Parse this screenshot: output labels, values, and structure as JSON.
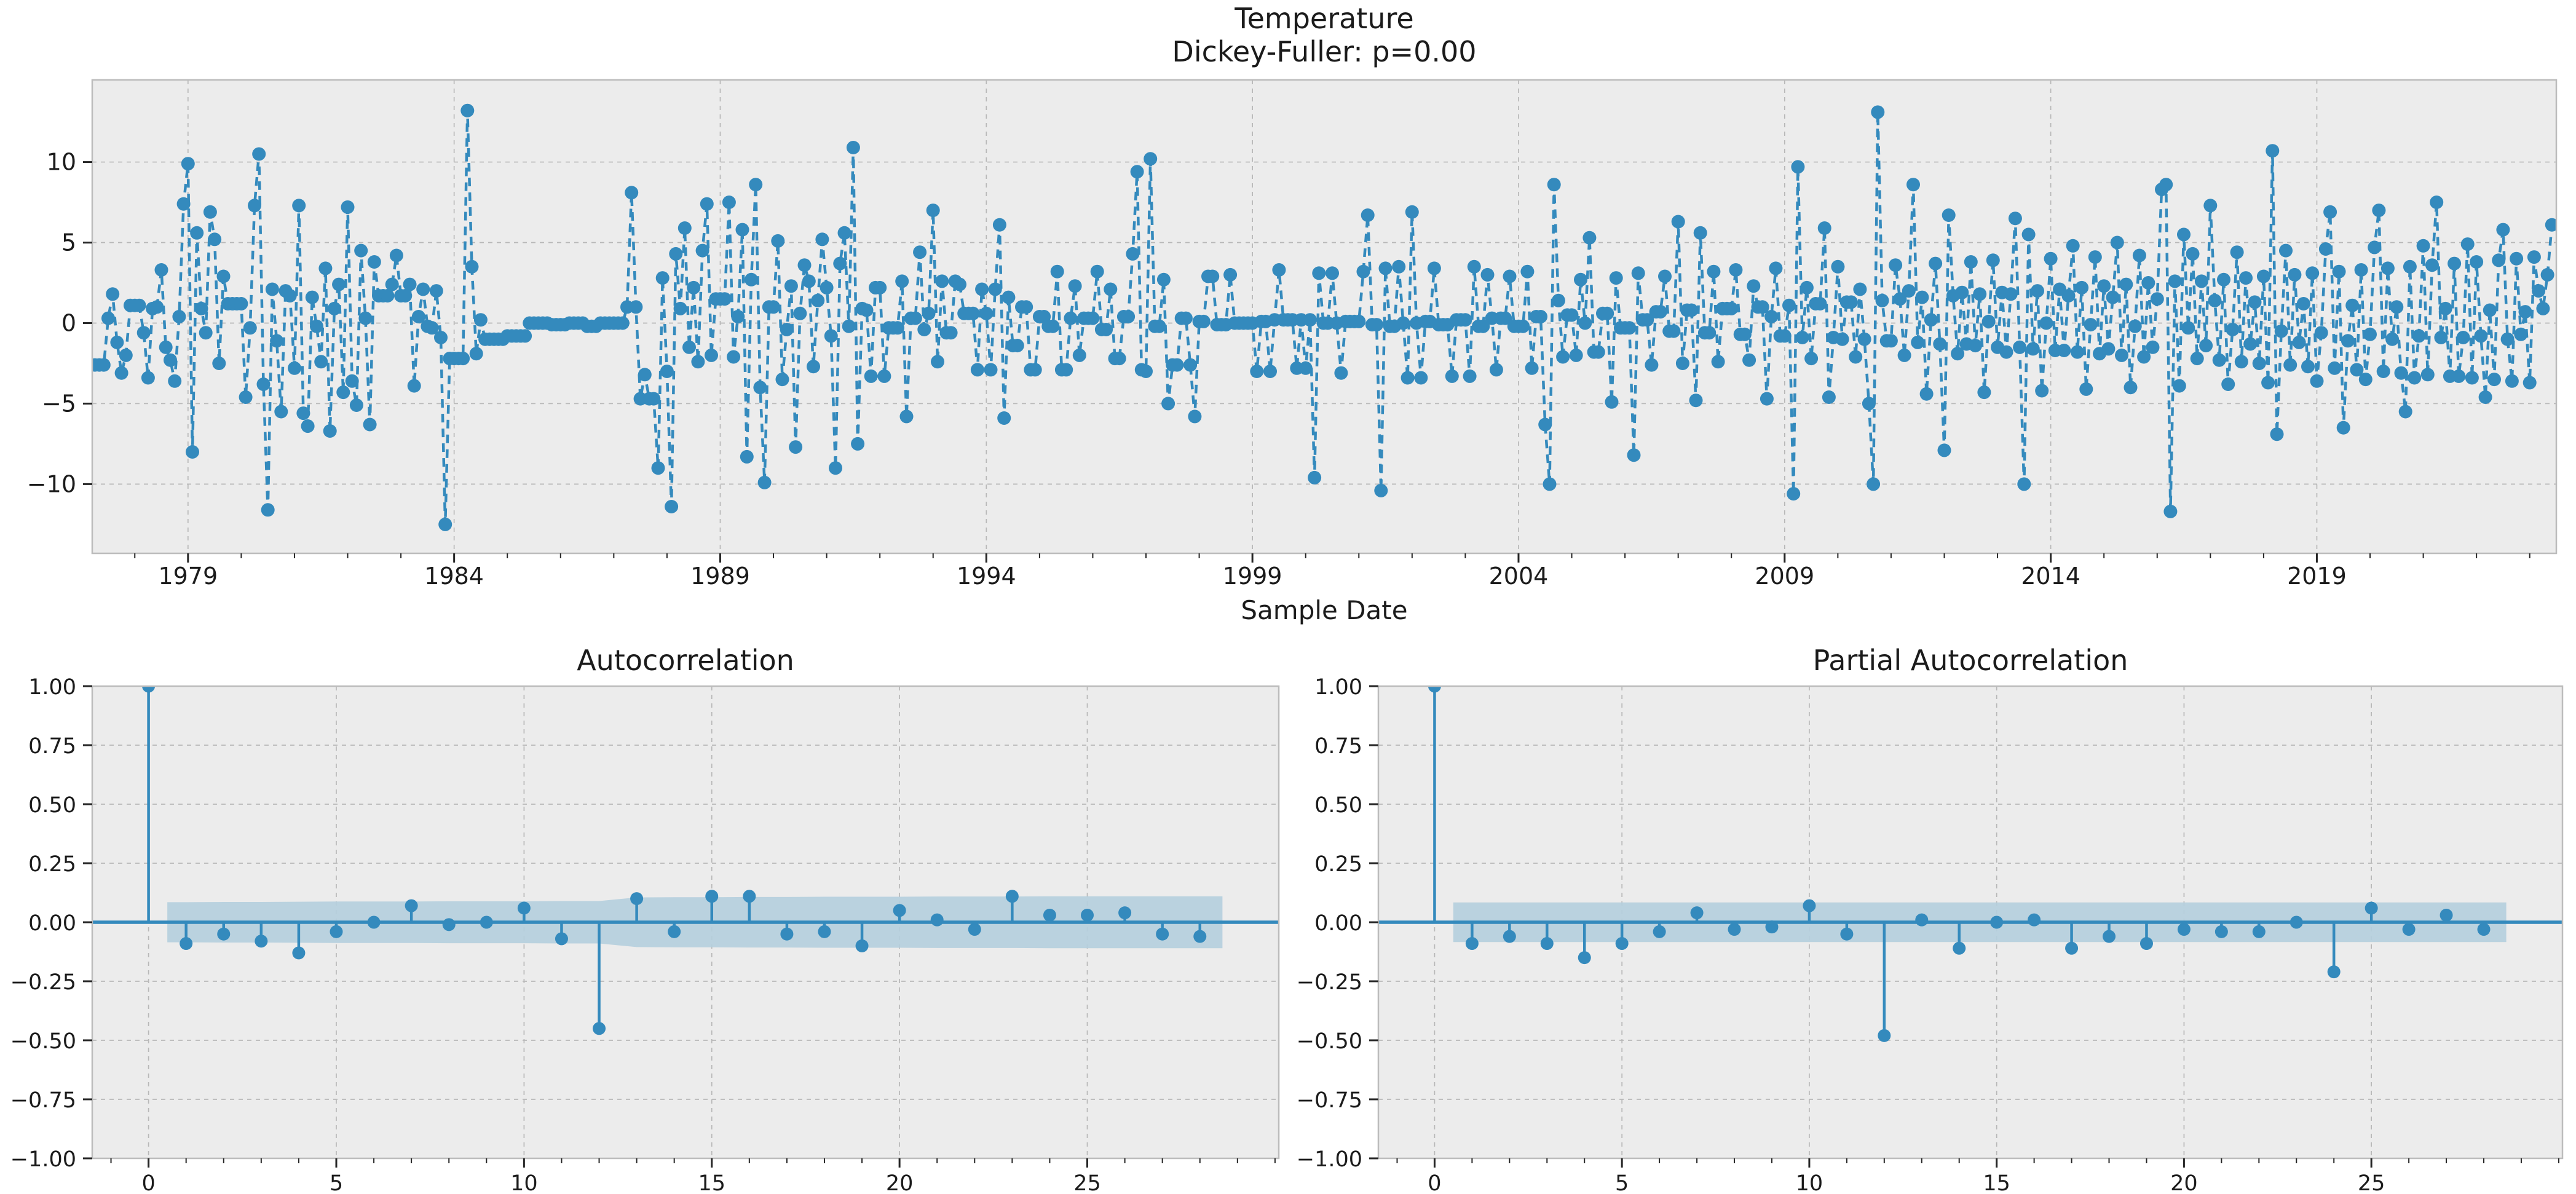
{
  "style": {
    "figure_bg": "#ffffff",
    "panel_bg": "#ececec",
    "grid_color": "#b8b8b8",
    "spine_color": "#bcbcbc",
    "tick_color": "#262626",
    "accent_blue": "#348ABD",
    "band_blue": "#b5cfde",
    "text_color": "#1b1b1b"
  },
  "chart_data": [
    {
      "type": "line",
      "title": "Temperature",
      "subtitle": "Dickey-Fuller: p=0.00",
      "xlabel": "Sample Date",
      "legend": null,
      "grid": true,
      "linestyle": "dashed",
      "marker": "o",
      "x_start": 1977.25,
      "x_step": 0.0833333,
      "xlim": [
        1977.2,
        2023.5
      ],
      "ylim": [
        -14.3,
        15.1
      ],
      "xticks": [
        1979,
        1984,
        1989,
        1994,
        1999,
        2004,
        2009,
        2014,
        2019
      ],
      "xtick_labels": [
        "1979",
        "1984",
        "1989",
        "1994",
        "1999",
        "2004",
        "2009",
        "2014",
        "2019"
      ],
      "xminor_step": 1,
      "yticks": [
        10,
        5,
        0,
        -5,
        -10
      ],
      "ytick_labels": [
        "10",
        "5",
        "0",
        "−5",
        "−10"
      ],
      "values": [
        -2.6,
        -2.6,
        -2.6,
        0.3,
        1.8,
        -1.2,
        -3.1,
        -2.0,
        1.1,
        1.1,
        1.1,
        -0.6,
        -3.4,
        0.9,
        1.0,
        3.3,
        -1.5,
        -2.3,
        -3.6,
        0.4,
        7.4,
        9.9,
        -8.0,
        5.6,
        0.9,
        -0.6,
        6.9,
        5.2,
        -2.5,
        2.9,
        1.2,
        1.2,
        1.2,
        1.2,
        -4.6,
        -0.3,
        7.3,
        10.5,
        -3.8,
        -11.6,
        2.1,
        -1.1,
        -5.5,
        2.0,
        1.7,
        -2.8,
        7.3,
        -5.6,
        -6.4,
        1.6,
        -0.2,
        -2.4,
        3.4,
        -6.7,
        0.9,
        2.4,
        -4.3,
        7.2,
        -3.6,
        -5.1,
        4.5,
        0.3,
        -6.3,
        3.8,
        1.7,
        1.7,
        1.7,
        2.4,
        4.2,
        1.7,
        1.7,
        2.4,
        -3.9,
        0.4,
        2.1,
        -0.2,
        -0.3,
        2.0,
        -0.9,
        -12.5,
        -2.2,
        -2.2,
        -2.2,
        -2.2,
        13.2,
        3.5,
        -1.9,
        0.2,
        -1.0,
        -1.0,
        -1.0,
        -1.0,
        -1.0,
        -0.8,
        -0.8,
        -0.8,
        -0.8,
        -0.8,
        0.0,
        0.0,
        0.0,
        0.0,
        0.0,
        -0.1,
        -0.1,
        -0.1,
        -0.1,
        0.0,
        0.0,
        0.0,
        0.0,
        -0.2,
        -0.2,
        -0.2,
        0.0,
        0.0,
        0.0,
        0.0,
        0.0,
        0.0,
        1.0,
        8.1,
        1.0,
        -4.7,
        -3.2,
        -4.7,
        -4.7,
        -9.0,
        2.8,
        -3.0,
        -11.4,
        4.3,
        0.9,
        5.9,
        -1.5,
        2.2,
        -2.4,
        4.5,
        7.4,
        -2.0,
        1.5,
        1.5,
        1.5,
        7.5,
        -2.1,
        0.4,
        5.8,
        -8.3,
        2.7,
        8.6,
        -4.0,
        -9.9,
        1.0,
        1.0,
        5.1,
        -3.5,
        -0.4,
        2.3,
        -7.7,
        0.6,
        3.6,
        2.6,
        -2.7,
        1.4,
        5.2,
        2.2,
        -0.8,
        -9.0,
        3.7,
        5.6,
        -0.2,
        10.9,
        -7.5,
        0.9,
        0.8,
        -3.3,
        2.2,
        2.2,
        -3.3,
        -0.3,
        -0.3,
        -0.3,
        2.6,
        -5.8,
        0.3,
        0.3,
        4.4,
        -0.4,
        0.6,
        7.0,
        -2.4,
        2.6,
        -0.6,
        -0.6,
        2.6,
        2.4,
        0.6,
        0.6,
        0.6,
        -2.9,
        2.1,
        0.6,
        -2.9,
        2.1,
        6.1,
        -5.9,
        1.6,
        -1.4,
        -1.4,
        1.0,
        1.0,
        -2.9,
        -2.9,
        0.4,
        0.4,
        -0.2,
        -0.2,
        3.2,
        -2.9,
        -2.9,
        0.3,
        2.3,
        -2.0,
        0.3,
        0.3,
        0.3,
        3.2,
        -0.4,
        -0.4,
        2.1,
        -2.2,
        -2.2,
        0.4,
        0.4,
        4.3,
        9.4,
        -2.9,
        -3.0,
        10.2,
        -0.2,
        -0.2,
        2.7,
        -5.0,
        -2.6,
        -2.6,
        0.3,
        0.3,
        -2.6,
        -5.8,
        0.1,
        0.1,
        2.9,
        2.9,
        -0.1,
        -0.1,
        -0.1,
        3.0,
        0.0,
        0.0,
        0.0,
        0.0,
        0.0,
        -3.0,
        0.1,
        0.1,
        -3.0,
        0.2,
        3.3,
        0.2,
        0.2,
        0.2,
        -2.8,
        0.2,
        -2.8,
        0.2,
        -9.6,
        3.1,
        0.0,
        0.0,
        3.1,
        0.0,
        -3.1,
        0.1,
        0.1,
        0.1,
        0.1,
        3.2,
        6.7,
        -0.1,
        -0.1,
        -10.4,
        3.4,
        -0.2,
        -0.2,
        3.5,
        0.0,
        -3.4,
        6.9,
        0.0,
        -3.4,
        0.1,
        0.1,
        3.4,
        -0.1,
        -0.1,
        -0.1,
        -3.3,
        0.2,
        0.2,
        0.2,
        -3.3,
        3.5,
        -0.2,
        -0.2,
        3.0,
        0.3,
        -2.9,
        0.3,
        0.3,
        2.9,
        -0.2,
        -0.2,
        -0.2,
        3.2,
        -2.8,
        0.4,
        0.4,
        -6.3,
        -10.0,
        8.6,
        1.4,
        -2.1,
        0.5,
        0.5,
        -2.0,
        2.7,
        0.0,
        5.3,
        -1.8,
        -1.8,
        0.6,
        0.6,
        -4.9,
        2.8,
        -0.3,
        -0.3,
        -0.3,
        -8.2,
        3.1,
        0.2,
        0.2,
        -2.6,
        0.7,
        0.7,
        2.9,
        -0.5,
        -0.5,
        6.3,
        -2.5,
        0.8,
        0.8,
        -4.8,
        5.6,
        -0.6,
        -0.6,
        3.2,
        -2.4,
        0.9,
        0.9,
        0.9,
        3.3,
        -0.7,
        -0.7,
        -2.3,
        2.3,
        1.0,
        1.0,
        -4.7,
        0.4,
        3.4,
        -0.8,
        -0.8,
        1.1,
        -10.6,
        9.7,
        -0.9,
        2.2,
        -2.2,
        1.2,
        1.2,
        5.9,
        -4.6,
        -0.9,
        3.5,
        -1.0,
        1.3,
        1.3,
        -2.1,
        2.1,
        -1.0,
        -5.0,
        -10.0,
        13.1,
        1.4,
        -1.1,
        -1.1,
        3.6,
        1.5,
        -2.0,
        2.0,
        8.6,
        -1.2,
        1.6,
        -4.4,
        0.2,
        3.7,
        -1.3,
        -7.9,
        6.7,
        1.7,
        -1.9,
        1.9,
        -1.3,
        3.8,
        -1.4,
        1.8,
        -4.3,
        0.1,
        3.9,
        -1.5,
        1.9,
        -1.8,
        1.8,
        6.5,
        -1.5,
        -10.0,
        5.5,
        -1.6,
        2.0,
        -4.2,
        0.0,
        4.0,
        -1.7,
        2.1,
        -1.7,
        1.7,
        4.8,
        -1.8,
        2.2,
        -4.1,
        -0.1,
        4.1,
        -1.9,
        2.3,
        -1.6,
        1.6,
        5.0,
        -2.0,
        2.4,
        -4.0,
        -0.2,
        4.2,
        -2.1,
        2.5,
        -1.5,
        1.5,
        8.3,
        8.6,
        -11.7,
        2.6,
        -3.9,
        5.5,
        -0.3,
        4.3,
        -2.2,
        2.6,
        -1.4,
        7.3,
        1.4,
        -2.3,
        2.7,
        -3.8,
        -0.4,
        4.4,
        -2.4,
        2.8,
        -1.3,
        1.3,
        -2.5,
        2.9,
        -3.7,
        10.7,
        -6.9,
        -0.5,
        4.5,
        -2.6,
        3.0,
        -1.2,
        1.2,
        -2.7,
        3.1,
        -3.6,
        -0.6,
        4.6,
        6.9,
        -2.8,
        3.2,
        -6.5,
        -1.1,
        1.1,
        -2.9,
        3.3,
        -3.5,
        -0.7,
        4.7,
        7.0,
        -3.0,
        3.4,
        -1.0,
        1.0,
        -3.1,
        -5.5,
        3.5,
        -3.4,
        -0.8,
        4.8,
        -3.2,
        3.6,
        7.5,
        -0.9,
        0.9,
        -3.3,
        3.7,
        -3.3,
        -0.9,
        4.9,
        -3.4,
        3.8,
        -0.8,
        -4.6,
        0.8,
        -3.5,
        3.9,
        5.8,
        -1.0,
        -3.6,
        4.0,
        -0.7,
        0.7,
        -3.7,
        4.1,
        2.0,
        0.9,
        3.0,
        6.1
      ]
    },
    {
      "type": "stem",
      "title": "Autocorrelation",
      "grid": true,
      "xlim": [
        -1.5,
        30.1
      ],
      "ylim": [
        -1.0,
        1.0
      ],
      "xticks": [
        0,
        5,
        10,
        15,
        20,
        25
      ],
      "xtick_labels": [
        "0",
        "5",
        "10",
        "15",
        "20",
        "25"
      ],
      "xminor_step": 1,
      "yticks": [
        1.0,
        0.75,
        0.5,
        0.25,
        0.0,
        -0.25,
        -0.5,
        -0.75,
        -1.0
      ],
      "ytick_labels": [
        "1.00",
        "0.75",
        "0.50",
        "0.25",
        "0.00",
        "−0.25",
        "−0.50",
        "−0.75",
        "−1.00"
      ],
      "values": [
        1.0,
        -0.09,
        -0.05,
        -0.08,
        -0.13,
        -0.04,
        0.0,
        0.07,
        -0.01,
        0.0,
        0.06,
        -0.07,
        -0.45,
        0.1,
        -0.04,
        0.11,
        0.11,
        -0.05,
        -0.04,
        -0.1,
        0.05,
        0.01,
        -0.03,
        0.11,
        0.03,
        0.03,
        0.04,
        -0.05,
        -0.06
      ],
      "conf_band": {
        "x_start": 0.5,
        "x_end": 28.6,
        "half_widths": [
          0.085,
          0.086,
          0.086,
          0.087,
          0.088,
          0.088,
          0.088,
          0.089,
          0.089,
          0.089,
          0.09,
          0.09,
          0.105,
          0.106,
          0.106,
          0.107,
          0.107,
          0.108,
          0.108,
          0.108,
          0.109,
          0.109,
          0.109,
          0.11,
          0.11,
          0.11,
          0.11,
          0.11
        ]
      }
    },
    {
      "type": "stem",
      "title": "Partial Autocorrelation",
      "grid": true,
      "xlim": [
        -1.5,
        30.1
      ],
      "ylim": [
        -1.0,
        1.0
      ],
      "xticks": [
        0,
        5,
        10,
        15,
        20,
        25
      ],
      "xtick_labels": [
        "0",
        "5",
        "10",
        "15",
        "20",
        "25"
      ],
      "xminor_step": 1,
      "yticks": [
        1.0,
        0.75,
        0.5,
        0.25,
        0.0,
        -0.25,
        -0.5,
        -0.75,
        -1.0
      ],
      "ytick_labels": [
        "1.00",
        "0.75",
        "0.50",
        "0.25",
        "0.00",
        "−0.25",
        "−0.50",
        "−0.75",
        "−1.00"
      ],
      "values": [
        1.0,
        -0.09,
        -0.06,
        -0.09,
        -0.15,
        -0.09,
        -0.04,
        0.04,
        -0.03,
        -0.02,
        0.07,
        -0.05,
        -0.48,
        0.01,
        -0.11,
        0.0,
        0.01,
        -0.11,
        -0.06,
        -0.09,
        -0.03,
        -0.04,
        -0.04,
        0.0,
        -0.21,
        0.06,
        -0.03,
        0.03,
        -0.03
      ],
      "conf_band": {
        "x_start": 0.5,
        "x_end": 28.6,
        "half_width": 0.084
      }
    }
  ]
}
